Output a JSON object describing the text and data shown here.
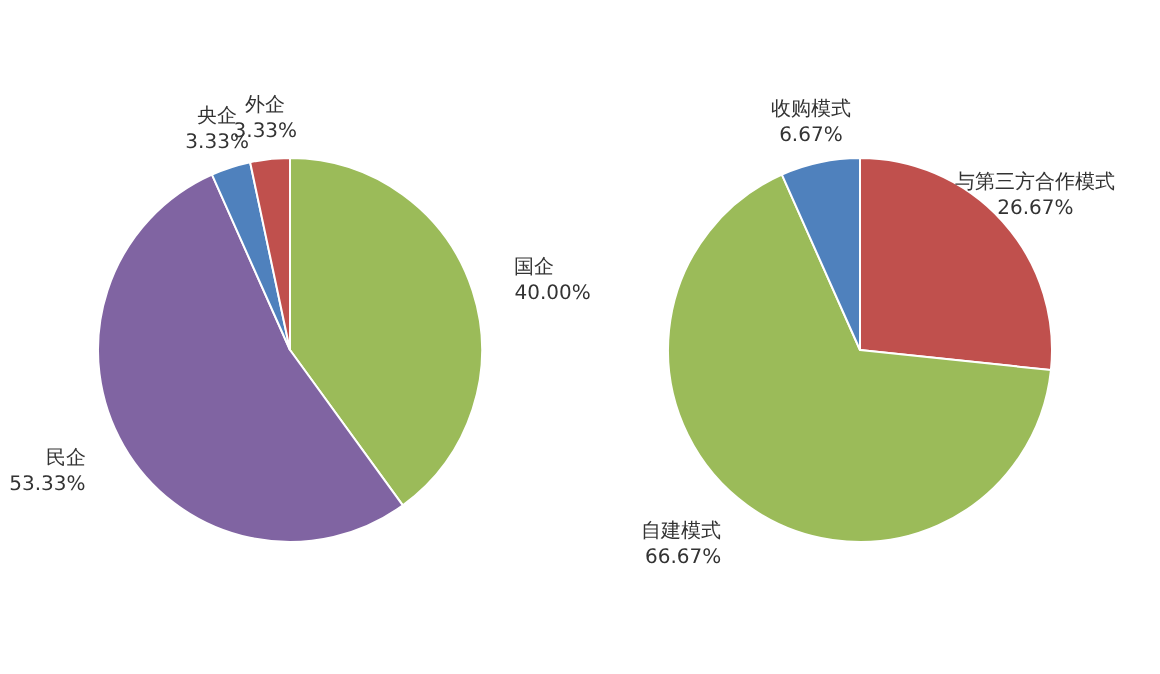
{
  "chart_data": [
    {
      "type": "pie",
      "categories": [
        "国企",
        "民企",
        "央企",
        "外企"
      ],
      "values": [
        40.0,
        53.33,
        3.33,
        3.33
      ],
      "colors": [
        "#9bbb59",
        "#8064a2",
        "#4f81bd",
        "#c0504d"
      ],
      "value_labels": [
        "40.00%",
        "53.33%",
        "3.33%",
        "3.33%"
      ]
    },
    {
      "type": "pie",
      "categories": [
        "与第三方合作模式",
        "自建模式",
        "收购模式"
      ],
      "values": [
        26.67,
        66.67,
        6.67
      ],
      "colors": [
        "#c0504d",
        "#9bbb59",
        "#4f81bd"
      ],
      "value_labels": [
        "26.67%",
        "66.67%",
        "6.67%"
      ]
    }
  ]
}
